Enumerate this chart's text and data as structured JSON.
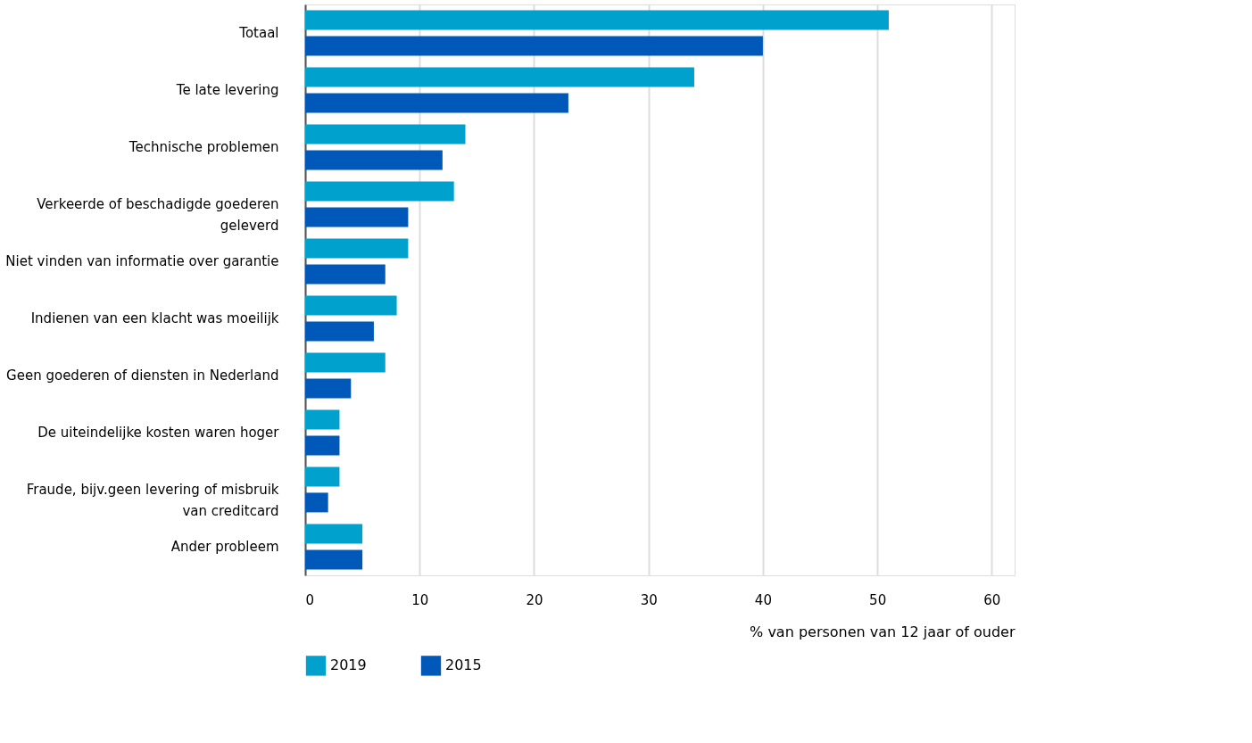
{
  "chart_data": {
    "type": "bar",
    "orientation": "horizontal",
    "xlabel": "% van personen van 12 jaar of ouder",
    "categories": [
      "Totaal",
      "Te late levering",
      "Technische problemen",
      "Verkeerde of beschadigde goederen geleverd",
      "Niet vinden van informatie over garantie",
      "Indienen van een klacht was moeilijk",
      "Geen goederen of diensten in Nederland",
      "De uiteindelijke kosten waren hoger",
      "Fraude, bijv.geen levering of misbruik van creditcard",
      "Ander probleem"
    ],
    "series": [
      {
        "name": "2019",
        "color": "#00a1cd",
        "values": [
          51,
          34,
          14,
          13,
          9,
          8,
          7,
          3,
          3,
          5
        ]
      },
      {
        "name": "2015",
        "color": "#0058b8",
        "values": [
          40,
          23,
          12,
          9,
          7,
          6,
          4,
          3,
          2,
          5
        ]
      }
    ],
    "xlim": [
      0,
      62
    ],
    "xticks": [
      0,
      10,
      20,
      30,
      40,
      50,
      60
    ],
    "grid": "x",
    "legend": "bottom"
  }
}
